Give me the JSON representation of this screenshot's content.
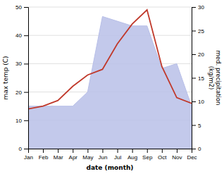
{
  "chart_data": {
    "type": "line",
    "xlabel": "date (month)",
    "ylabel": "max temp (C)",
    "y2label": "med. precipitation\n(kg/m2)",
    "categories": [
      "Jan",
      "Feb",
      "Mar",
      "Apr",
      "May",
      "Jun",
      "Jul",
      "Aug",
      "Sep",
      "Oct",
      "Nov",
      "Dec"
    ],
    "series": [
      {
        "type": "line",
        "color": "#c0392b",
        "values": [
          14,
          15,
          17,
          22,
          26,
          28,
          37,
          44,
          49,
          29,
          18,
          16
        ]
      },
      {
        "type": "area",
        "color": "#b8bfe8",
        "axis": "y2",
        "values": [
          9,
          9,
          9,
          9,
          12,
          28,
          27,
          26,
          26,
          17,
          18,
          9
        ]
      }
    ],
    "ylim": [
      0,
      50
    ],
    "yticks": [
      0,
      10,
      20,
      30,
      40,
      50
    ],
    "y2lim": [
      0,
      30
    ],
    "y2ticks": [
      0,
      5,
      10,
      15,
      20,
      25,
      30
    ],
    "grid": true
  }
}
